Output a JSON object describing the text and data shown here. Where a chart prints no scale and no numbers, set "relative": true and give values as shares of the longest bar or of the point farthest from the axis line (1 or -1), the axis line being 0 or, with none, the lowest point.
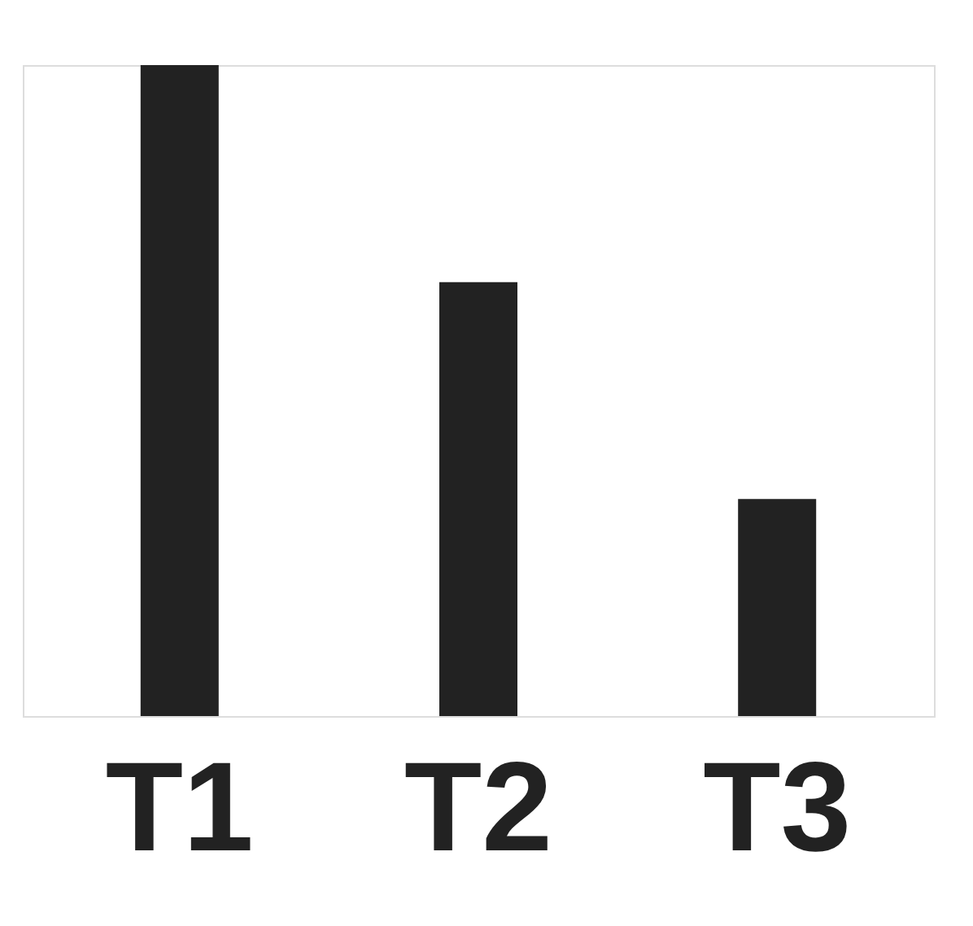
{
  "chart_data": {
    "type": "bar",
    "relative": true,
    "categories": [
      "T1",
      "T2",
      "T3"
    ],
    "values": [
      1,
      0.6667,
      0.3333
    ],
    "color": "#222222",
    "grid": false,
    "legend": false
  }
}
